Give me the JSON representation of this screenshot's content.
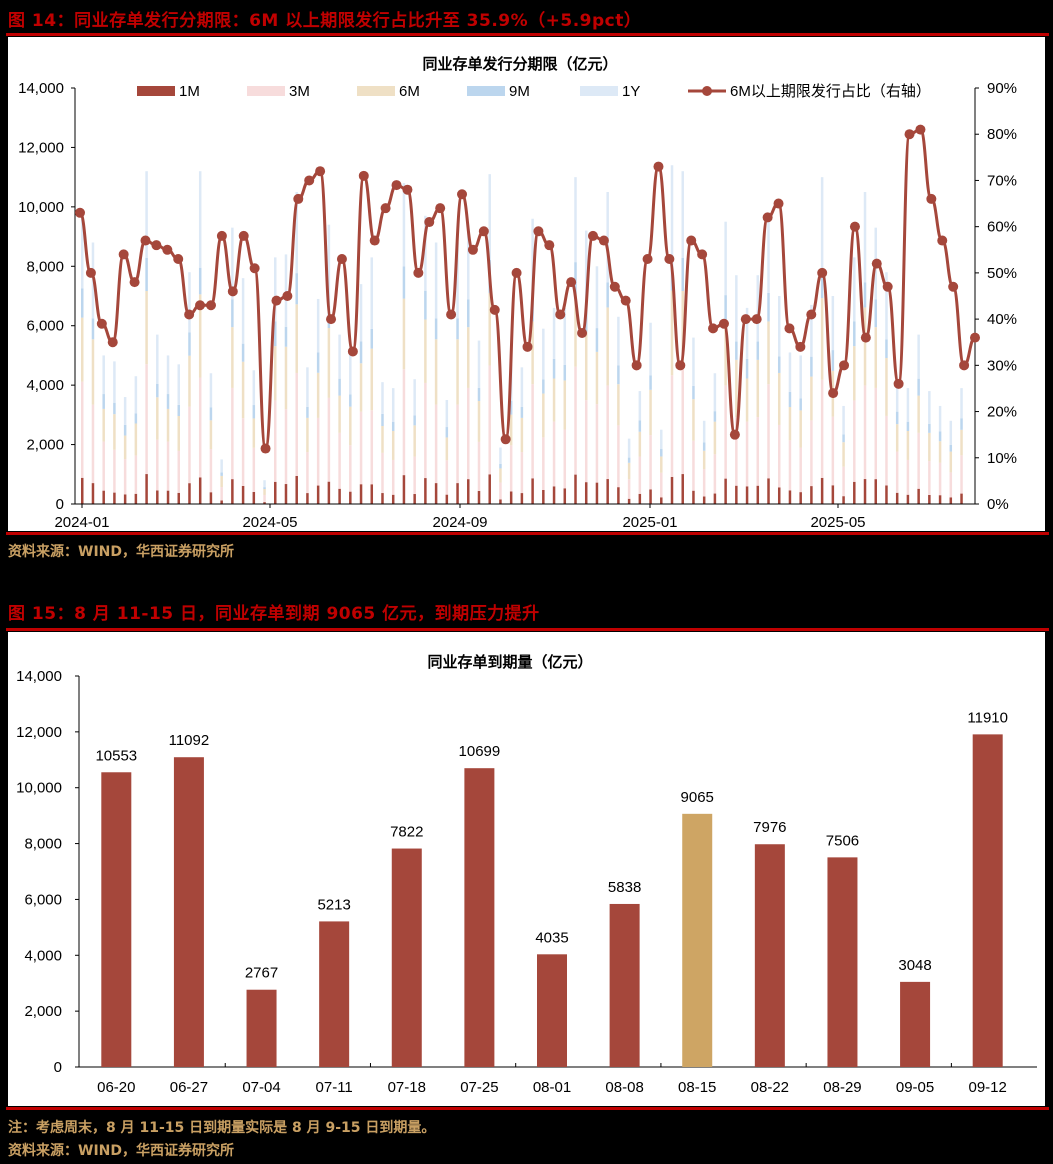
{
  "figure14": {
    "title": "图 14：同业存单发行分期限：6M 以上期限发行占比升至 35.9%（+5.9pct）",
    "source": "资料来源：WIND，华西证券研究所"
  },
  "figure15": {
    "title": "图 15：8 月 11-15 日，同业存单到期 9065 亿元，到期压力提升",
    "note": "注：考虑周末，8 月 11-15 日到期量实际是 8 月 9-15 日到期量。",
    "source": "资料来源：WIND，华西证券研究所"
  },
  "colors": {
    "c1M": "#a5473b",
    "c3M": "#f7dcdc",
    "c6M": "#efe0c5",
    "c9M": "#bcd6ee",
    "c1Y": "#dde9f6",
    "line": "#a5473b",
    "highlight": "#cea564",
    "title_red": "#c00000",
    "source_gold": "#c9a063"
  },
  "chart_data": [
    {
      "type": "bar+line",
      "title": "同业存单发行分期限（亿元）",
      "xlabel": "",
      "ylabel_left": "亿元",
      "ylabel_right": "%",
      "ylim_left": [
        0,
        14000
      ],
      "ylim_right": [
        0,
        90
      ],
      "yticks_left": [
        "0",
        "2,000",
        "4,000",
        "6,000",
        "8,000",
        "10,000",
        "12,000",
        "14,000"
      ],
      "yticks_right": [
        "0%",
        "10%",
        "20%",
        "30%",
        "40%",
        "50%",
        "60%",
        "70%",
        "80%",
        "90%"
      ],
      "xticks": [
        "2024-01",
        "2024-05",
        "2024-09",
        "2025-01",
        "2025-05"
      ],
      "legend": [
        "1M",
        "3M",
        "6M",
        "9M",
        "1Y",
        "6M以上期限发行占比（右轴）"
      ],
      "legend_position": "top",
      "grid": false,
      "stacked_bar_series": [
        "1M",
        "3M",
        "6M",
        "9M",
        "1Y"
      ],
      "line_series": {
        "name": "6M以上期限发行占比（右轴）",
        "values_pct": [
          63,
          50,
          39,
          35,
          54,
          48,
          57,
          56,
          55,
          53,
          41,
          43,
          43,
          58,
          46,
          58,
          51,
          12,
          44,
          45,
          66,
          70,
          72,
          40,
          53,
          33,
          71,
          57,
          64,
          69,
          68,
          50,
          61,
          64,
          41,
          67,
          55,
          59,
          42,
          14,
          50,
          34,
          59,
          56,
          41,
          48,
          37,
          58,
          57,
          47,
          44,
          30,
          53,
          73,
          53,
          30,
          57,
          54,
          38,
          39,
          15,
          40,
          40,
          62,
          65,
          38,
          34,
          41,
          50,
          24,
          30,
          60,
          36,
          52,
          47,
          26,
          80,
          81,
          66,
          57,
          47,
          30,
          36
        ]
      },
      "approx_total_bars": [
        9800,
        8800,
        5000,
        4800,
        3600,
        4300,
        11200,
        5700,
        5000,
        4700,
        7800,
        11200,
        4400,
        1500,
        9300,
        7600,
        4500,
        800,
        8300,
        8400,
        10500,
        4600,
        6900,
        9400,
        5700,
        5200,
        7400,
        8300,
        4100,
        3900,
        10800,
        4200,
        9700,
        8800,
        3500,
        8800,
        9300,
        5500,
        11100,
        1900,
        4700,
        4600,
        9600,
        5900,
        6600,
        6600,
        11000,
        9200,
        8000,
        10500,
        6300,
        2200,
        3800,
        6100,
        2500,
        11400,
        11200,
        5600,
        2800,
        4400,
        9500,
        7700,
        6600,
        7700,
        9600,
        7000,
        5100,
        5000,
        6700,
        11000,
        7000,
        3300,
        8300,
        10500,
        9300,
        7800,
        4200,
        3900,
        5700,
        3800,
        3300,
        2800,
        3900
      ]
    },
    {
      "type": "bar",
      "title": "同业存单到期量（亿元）",
      "xlabel": "",
      "ylabel": "亿元",
      "ylim": [
        0,
        14000
      ],
      "yticks": [
        "0",
        "2,000",
        "4,000",
        "6,000",
        "8,000",
        "10,000",
        "12,000",
        "14,000"
      ],
      "categories": [
        "06-20",
        "06-27",
        "07-04",
        "07-11",
        "07-18",
        "07-25",
        "08-01",
        "08-08",
        "08-15",
        "08-22",
        "08-29",
        "09-05",
        "09-12"
      ],
      "values": [
        10553,
        11092,
        2767,
        5213,
        7822,
        10699,
        4035,
        5838,
        9065,
        7976,
        7506,
        3048,
        11910
      ],
      "highlight_index": 8,
      "grid": false,
      "data_labels": true
    }
  ]
}
